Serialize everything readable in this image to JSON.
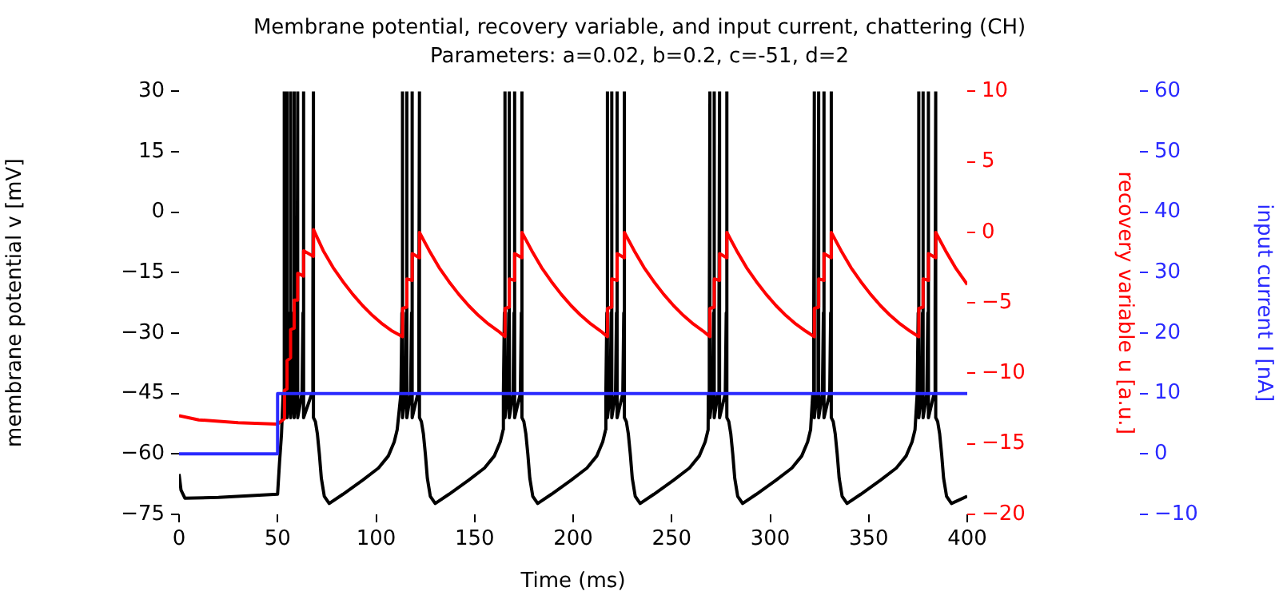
{
  "chart_data": {
    "type": "line",
    "title": "Membrane potential, recovery variable, and input current, chattering (CH)",
    "subtitle": "Parameters: a=0.02, b=0.2, c=-51, d=2",
    "xlabel": "Time (ms)",
    "ylabel": "membrane potential v [mV]",
    "y2label": "recovery variable u [a.u.]",
    "y3label": "input current I [nA]",
    "xlim": [
      0,
      400
    ],
    "xticks": [
      0,
      50,
      100,
      150,
      200,
      250,
      300,
      350,
      400
    ],
    "ylim": [
      -75,
      30
    ],
    "yticks": [
      -75,
      -60,
      -45,
      -30,
      -15,
      0,
      15,
      30
    ],
    "y2lim": [
      -20,
      10
    ],
    "y2ticks": [
      -20,
      -15,
      -10,
      -5,
      0,
      5,
      10
    ],
    "y3lim": [
      -10,
      60
    ],
    "y3ticks": [
      -10,
      0,
      10,
      20,
      30,
      40,
      50,
      60
    ],
    "grid": false,
    "legend": false,
    "series": [
      {
        "color": "#000000",
        "x": [
          0,
          1,
          3,
          20,
          50,
          51,
          52,
          52.8,
          53.2,
          53.5,
          53.5,
          54.0,
          54.5,
          54.8,
          54.8,
          55.8,
          56.3,
          56.6,
          56.6,
          57.6,
          58.1,
          58.4,
          58.4,
          59.4,
          59.9,
          60.2,
          60.2,
          62.4,
          62.9,
          63.2,
          63.2,
          67.4,
          67.9,
          68.2,
          68.2,
          69.2,
          70.2,
          71.2,
          72.2,
          73.7,
          76.2,
          83.2,
          93.2,
          101.2,
          106.2,
          109.2,
          110.7,
          112.6,
          113.1,
          113.4,
          113.4,
          114.8,
          115.3,
          115.6,
          115.6,
          117.5,
          118.0,
          118.3,
          118.3,
          121.2,
          121.7,
          122,
          122,
          123,
          124,
          125,
          126,
          127.5,
          130,
          137,
          147,
          155,
          160,
          163,
          164.5,
          164.6,
          165.1,
          165.4,
          165.4,
          166.8,
          167.3,
          167.6,
          167.6,
          169.5,
          170.0,
          170.3,
          170.3,
          173.2,
          173.7,
          174,
          174,
          175,
          176,
          177,
          178,
          179.5,
          182,
          189,
          199,
          207,
          212,
          215,
          216.5,
          216.6,
          217.1,
          217.4,
          217.4,
          218.8,
          219.3,
          219.6,
          219.6,
          221.5,
          222.0,
          222.3,
          222.3,
          225.2,
          225.7,
          226,
          226,
          227,
          228,
          229,
          230,
          231.5,
          234,
          241,
          251,
          259,
          264,
          267,
          268.5,
          268.6,
          269.1,
          269.4,
          269.4,
          270.8,
          271.3,
          271.6,
          271.6,
          273.5,
          274.0,
          274.3,
          274.3,
          277.2,
          277.7,
          278,
          278,
          279,
          280,
          281,
          282,
          283.5,
          286,
          293,
          303,
          311,
          316,
          319,
          320.5,
          321.6,
          322.1,
          322.4,
          322.4,
          323.8,
          324.3,
          324.6,
          324.6,
          326.5,
          327.0,
          327.3,
          327.3,
          330.2,
          330.7,
          331,
          331,
          332,
          333,
          334,
          335,
          336.5,
          339,
          346,
          356,
          364,
          369,
          372,
          373.5,
          374.6,
          375.1,
          375.4,
          375.4,
          376.8,
          377.3,
          377.6,
          377.6,
          379.5,
          380.0,
          380.3,
          380.3,
          383.2,
          383.7,
          384,
          384,
          385,
          386,
          387,
          388,
          389.5,
          392,
          400
        ],
        "values": [
          -65,
          -69,
          -71,
          -70.8,
          -70,
          -62,
          -55,
          -45,
          -25,
          30,
          -51,
          -45,
          -25,
          30,
          -51,
          -45,
          -25,
          30,
          -51,
          -45,
          -25,
          30,
          -51,
          -45,
          -25,
          30,
          -51,
          -45,
          -25,
          30,
          -51,
          -45,
          -25,
          30,
          -51,
          -52,
          -55,
          -60,
          -66,
          -70.5,
          -72.3,
          -70,
          -66.5,
          -63.5,
          -60.5,
          -57,
          -54,
          -45,
          -25,
          30,
          -51,
          -45,
          -25,
          30,
          -51,
          -45,
          -25,
          30,
          -51,
          -45,
          -25,
          30,
          -51,
          -52,
          -55,
          -60,
          -66,
          -70.5,
          -72.3,
          -70,
          -66.5,
          -63.5,
          -60.5,
          -57,
          -54,
          -45,
          -25,
          30,
          -51,
          -45,
          -25,
          30,
          -51,
          -45,
          -25,
          30,
          -51,
          -45,
          -25,
          30,
          -51,
          -52,
          -55,
          -60,
          -66,
          -70.5,
          -72.3,
          -70,
          -66.5,
          -63.5,
          -60.5,
          -57,
          -54,
          -45,
          -25,
          30,
          -51,
          -45,
          -25,
          30,
          -51,
          -45,
          -25,
          30,
          -51,
          -45,
          -25,
          30,
          -51,
          -52,
          -55,
          -60,
          -66,
          -70.5,
          -72.3,
          -70,
          -66.5,
          -63.5,
          -60.5,
          -57,
          -54,
          -45,
          -25,
          30,
          -51,
          -45,
          -25,
          30,
          -51,
          -45,
          -25,
          30,
          -51,
          -45,
          -25,
          30,
          -51,
          -52,
          -55,
          -60,
          -66,
          -70.5,
          -72.3,
          -70,
          -66.5,
          -63.5,
          -60.5,
          -57,
          -54,
          -45,
          -25,
          30,
          -51,
          -45,
          -25,
          30,
          -51,
          -45,
          -25,
          30,
          -51,
          -45,
          -25,
          30,
          -51,
          -52,
          -55,
          -60,
          -66,
          -70.5,
          -72.3,
          -70,
          -66.5,
          -63.5,
          -60.5,
          -57,
          -54,
          -45,
          -25,
          30,
          -51,
          -45,
          -25,
          30,
          -51,
          -45,
          -25,
          30,
          -51,
          -45,
          -25,
          30,
          -51,
          -52,
          -55,
          -60,
          -66,
          -70.5,
          -72.3,
          -70.5
        ]
      },
      {
        "color": "#ff0000",
        "axis": "y2",
        "x": [
          0,
          10,
          30,
          50,
          53.5,
          53.5,
          54.8,
          54.8,
          56.6,
          56.6,
          58.4,
          58.4,
          60.2,
          60.2,
          63.2,
          63.2,
          68.2,
          68.2,
          73.2,
          78.2,
          83.2,
          88.2,
          93.2,
          98.2,
          103.2,
          108.2,
          113.4,
          113.4,
          115.6,
          115.6,
          118.3,
          118.3,
          122,
          122,
          127,
          132,
          137,
          142,
          147,
          152,
          157,
          162,
          165.4,
          165.4,
          167.6,
          167.6,
          170.3,
          170.3,
          174,
          174,
          179,
          184,
          189,
          194,
          199,
          204,
          209,
          214,
          217.4,
          217.4,
          219.6,
          219.6,
          222.3,
          222.3,
          226,
          226,
          231,
          236,
          241,
          246,
          251,
          256,
          261,
          266,
          269.4,
          269.4,
          271.6,
          271.6,
          274.3,
          274.3,
          278,
          278,
          283,
          288,
          293,
          298,
          303,
          308,
          313,
          318,
          322.4,
          322.4,
          324.6,
          324.6,
          327.3,
          327.3,
          331,
          331,
          336,
          341,
          346,
          351,
          356,
          361,
          366,
          371,
          375.4,
          375.4,
          377.6,
          377.6,
          380.3,
          380.3,
          384,
          384,
          389,
          394,
          399,
          400
        ],
        "values": [
          -13,
          -13.3,
          -13.5,
          -13.6,
          -13.2,
          -11.2,
          -11.1,
          -9.1,
          -8.9,
          -6.9,
          -6.8,
          -4.8,
          -4.8,
          -2.9,
          -3.1,
          -1.3,
          -1.7,
          0.2,
          -1.3,
          -2.5,
          -3.5,
          -4.4,
          -5.2,
          -5.9,
          -6.5,
          -7,
          -7.4,
          -5.4,
          -5.3,
          -3.3,
          -3.4,
          -1.5,
          -1.8,
          0,
          -1.3,
          -2.5,
          -3.5,
          -4.4,
          -5.2,
          -5.9,
          -6.5,
          -7,
          -7.4,
          -5.4,
          -5.3,
          -3.3,
          -3.4,
          -1.5,
          -1.8,
          0,
          -1.3,
          -2.5,
          -3.5,
          -4.4,
          -5.2,
          -5.9,
          -6.5,
          -7,
          -7.4,
          -5.4,
          -5.3,
          -3.3,
          -3.4,
          -1.5,
          -1.8,
          0,
          -1.3,
          -2.5,
          -3.5,
          -4.4,
          -5.2,
          -5.9,
          -6.5,
          -7,
          -7.4,
          -5.4,
          -5.3,
          -3.3,
          -3.4,
          -1.5,
          -1.8,
          0,
          -1.3,
          -2.5,
          -3.5,
          -4.4,
          -5.2,
          -5.9,
          -6.5,
          -7,
          -7.4,
          -5.4,
          -5.3,
          -3.3,
          -3.4,
          -1.5,
          -1.8,
          0,
          -1.3,
          -2.5,
          -3.5,
          -4.4,
          -5.2,
          -5.9,
          -6.5,
          -7,
          -7.4,
          -5.4,
          -5.3,
          -3.3,
          -3.4,
          -1.5,
          -1.8,
          0,
          -1.3,
          -2.5,
          -3.5,
          -3.7
        ]
      },
      {
        "color": "#2a2aff",
        "axis": "y3",
        "x": [
          0,
          50,
          50,
          400
        ],
        "values": [
          0,
          0,
          10,
          10
        ]
      }
    ]
  }
}
